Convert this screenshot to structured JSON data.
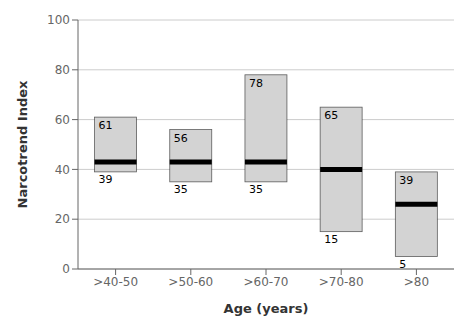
{
  "chart_data": {
    "type": "box",
    "categories": [
      ">40-50",
      ">50-60",
      ">60-70",
      ">70-80",
      ">80"
    ],
    "box_bottom": [
      39,
      35,
      35,
      15,
      5
    ],
    "box_top": [
      61,
      56,
      78,
      65,
      39
    ],
    "median": [
      43,
      43,
      43,
      40,
      26
    ],
    "xlabel": "Age (years)",
    "ylabel": "Narcotrend Index",
    "ylim": [
      0,
      100
    ],
    "yticks": [
      0,
      20,
      40,
      60,
      80,
      100
    ],
    "color": "#d3d3d3",
    "grid": true,
    "data_labels": true
  }
}
